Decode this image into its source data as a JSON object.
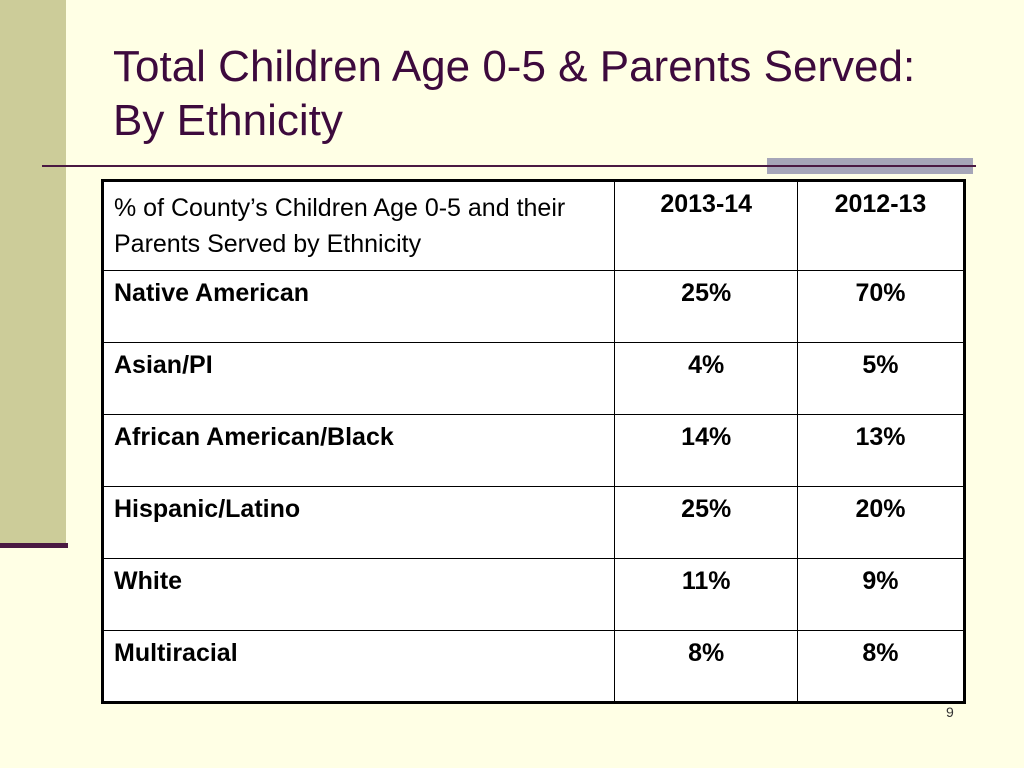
{
  "slide": {
    "title": "Total Children Age 0-5 & Parents Served: By Ethnicity",
    "page_number": "9"
  },
  "table": {
    "header": {
      "label": "% of County’s Children Age 0-5 and their Parents Served by Ethnicity",
      "col_a": "2013-14",
      "col_b": "2012-13"
    },
    "rows": [
      {
        "label": "Native American",
        "col_a": "25%",
        "col_b": "70%"
      },
      {
        "label": "Asian/PI",
        "col_a": "4%",
        "col_b": "5%"
      },
      {
        "label": "African American/Black",
        "col_a": "14%",
        "col_b": "13%"
      },
      {
        "label": "Hispanic/Latino",
        "col_a": "25%",
        "col_b": "20%"
      },
      {
        "label": "White",
        "col_a": "11%",
        "col_b": "9%"
      },
      {
        "label": "Multiracial",
        "col_a": "8%",
        "col_b": "8%"
      }
    ]
  },
  "colors": {
    "background": "#FFFFE5",
    "accent_strip": "#CCCC99",
    "title_text": "#3D0A3D",
    "rule": "#4A1942"
  }
}
